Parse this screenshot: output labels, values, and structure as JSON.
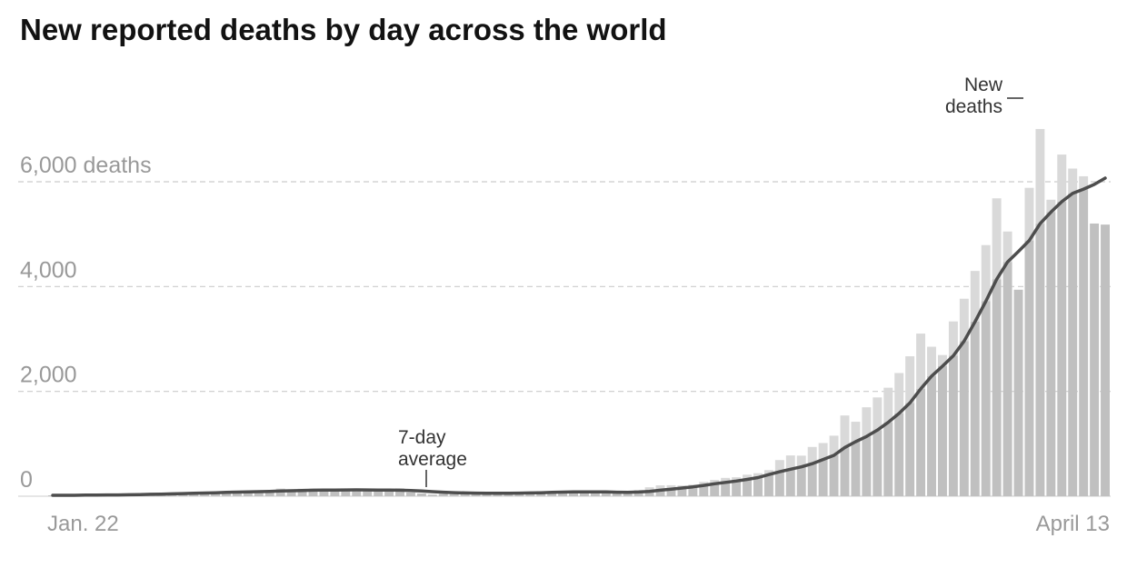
{
  "chart_data": {
    "type": "bar",
    "title": "New reported deaths by day across the world",
    "xlabel": "",
    "ylabel": "",
    "ylim": [
      0,
      8000
    ],
    "yticks": [
      0,
      2000,
      4000,
      6000
    ],
    "ytick_labels": [
      "0",
      "2,000",
      "4,000",
      "6,000 deaths"
    ],
    "x_labels": {
      "first": "Jan. 22",
      "last": "April 13"
    },
    "annotations": {
      "new_deaths": [
        "New",
        "deaths"
      ],
      "average": [
        "7-day",
        "average"
      ]
    },
    "grid": true,
    "legend": "none",
    "colors": {
      "bar": "#d9d9d9",
      "bar_overlap": "#c0c0c0",
      "line": "#4d4d4d",
      "grid": "#cccccc",
      "title": "#121212",
      "tick": "#999999"
    },
    "series": [
      {
        "name": "New deaths",
        "values": [
          17,
          0,
          8,
          16,
          14,
          26,
          26,
          38,
          43,
          46,
          46,
          57,
          64,
          65,
          73,
          73,
          86,
          89,
          97,
          108,
          97,
          146,
          121,
          143,
          142,
          105,
          98,
          136,
          114,
          118,
          109,
          97,
          150,
          71,
          52,
          29,
          44,
          37,
          35,
          58,
          67,
          72,
          84,
          80,
          69,
          97,
          93,
          80,
          83,
          79,
          58,
          90,
          63,
          71,
          117,
          171,
          207,
          210,
          205,
          220,
          273,
          311,
          350,
          362,
          410,
          439,
          498,
          690,
          778,
          774,
          940,
          1015,
          1155,
          1540,
          1421,
          1697,
          1885,
          2070,
          2351,
          2670,
          3103,
          2852,
          2694,
          3335,
          3768,
          4298,
          4791,
          5684,
          5051,
          3940,
          5884,
          7007,
          5657,
          6519,
          6252,
          6105,
          5203,
          5183
        ],
        "values_note": "daily bars, Jan. 22 to April 13"
      },
      {
        "name": "7-day average",
        "values": [
          17,
          17,
          18,
          20,
          22,
          24,
          25,
          28,
          32,
          36,
          40,
          45,
          50,
          55,
          60,
          66,
          72,
          78,
          83,
          87,
          92,
          98,
          104,
          110,
          114,
          116,
          118,
          120,
          121,
          120,
          118,
          116,
          114,
          108,
          99,
          87,
          76,
          68,
          62,
          59,
          57,
          56,
          57,
          59,
          62,
          66,
          72,
          78,
          82,
          84,
          83,
          81,
          76,
          75,
          80,
          92,
          115,
          136,
          156,
          178,
          206,
          238,
          264,
          290,
          320,
          355,
          412,
          467,
          515,
          560,
          620,
          700,
          780,
          930,
          1040,
          1140,
          1260,
          1410,
          1580,
          1780,
          2050,
          2290,
          2480,
          2680,
          2960,
          3330,
          3720,
          4140,
          4470,
          4670,
          4880,
          5200,
          5420,
          5620,
          5780,
          5860,
          5950,
          6070
        ]
      }
    ]
  }
}
